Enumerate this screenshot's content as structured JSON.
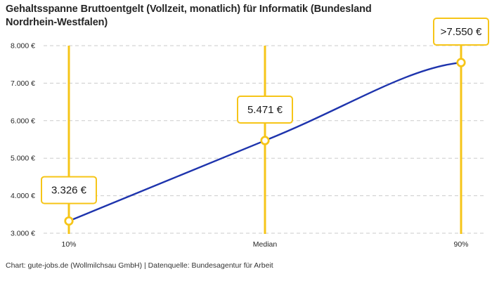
{
  "title_lines": {
    "line1": "Gehaltsspanne Bruttoentgelt (Vollzeit, monatlich) für Informatik (Bundesland",
    "line2": "Nordrhein-Westfalen)"
  },
  "source": "Chart: gute-jobs.de (Wollmilchsau GmbH) | Datenquelle: Bundesagentur für Arbeit",
  "chart_data": {
    "type": "line",
    "title": "Gehaltsspanne Bruttoentgelt (Vollzeit, monatlich) für Informatik (Bundesland Nordrhein-Westfalen)",
    "categories": [
      "10%",
      "Median",
      "90%"
    ],
    "values": [
      3326,
      5471,
      7550
    ],
    "point_labels": [
      "3.326 €",
      "5.471 €",
      ">7.550 €"
    ],
    "ylim": [
      3000,
      8000
    ],
    "y_ticks": [
      {
        "value": 3000,
        "label": "3.000 €"
      },
      {
        "value": 4000,
        "label": "4.000 €"
      },
      {
        "value": 5000,
        "label": "5.000 €"
      },
      {
        "value": 6000,
        "label": "6.000 €"
      },
      {
        "value": 7000,
        "label": "7.000 €"
      },
      {
        "value": 8000,
        "label": "8.000 €"
      }
    ],
    "grid": "horizontal-dashed",
    "legend": "none",
    "xlabel": "",
    "ylabel": "",
    "colors": {
      "line": "#1e34ad",
      "annotation": "#f6c518",
      "label_box_bg": "#ffffff",
      "label_text": "#1a1a1a",
      "grid": "#cbcbcb",
      "axis_text": "#262626"
    }
  }
}
